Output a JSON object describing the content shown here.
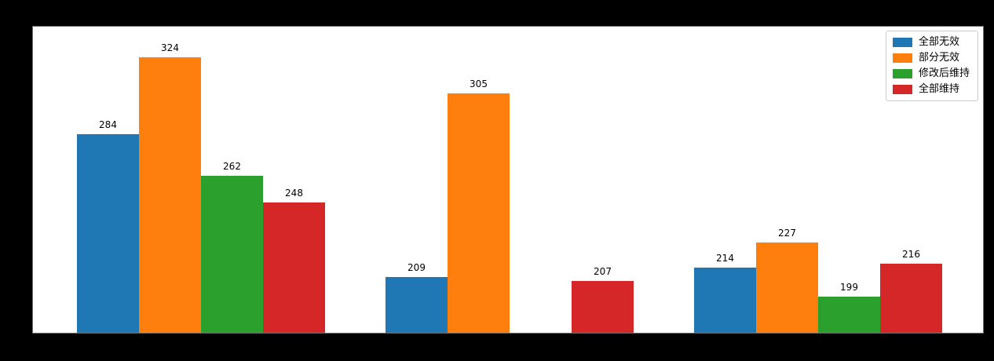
{
  "figure": {
    "background_color": "#000000",
    "plot_background_color": "#ffffff"
  },
  "legend": {
    "position": "upper right",
    "entries": [
      {
        "label": "全部无效",
        "color": "#1f77b4"
      },
      {
        "label": "部分无效",
        "color": "#ff7f0e"
      },
      {
        "label": "修改后维持",
        "color": "#2ca02c"
      },
      {
        "label": "全部维持",
        "color": "#d62728"
      }
    ]
  },
  "chart_data": {
    "type": "bar",
    "categories": [
      "",
      "",
      ""
    ],
    "series": [
      {
        "name": "全部无效",
        "color": "#1f77b4",
        "values": [
          284,
          209,
          214
        ]
      },
      {
        "name": "部分无效",
        "color": "#ff7f0e",
        "values": [
          324,
          305,
          227
        ]
      },
      {
        "name": "修改后维持",
        "color": "#2ca02c",
        "values": [
          262,
          null,
          199
        ]
      },
      {
        "name": "全部维持",
        "color": "#d62728",
        "values": [
          248,
          207,
          216
        ]
      }
    ],
    "bar_value_labels_visible": true,
    "x_tick_labels_visible": false,
    "y_tick_labels_visible": false,
    "grid": false,
    "ylim": [
      180,
      340
    ],
    "legend_position": "upper right"
  }
}
